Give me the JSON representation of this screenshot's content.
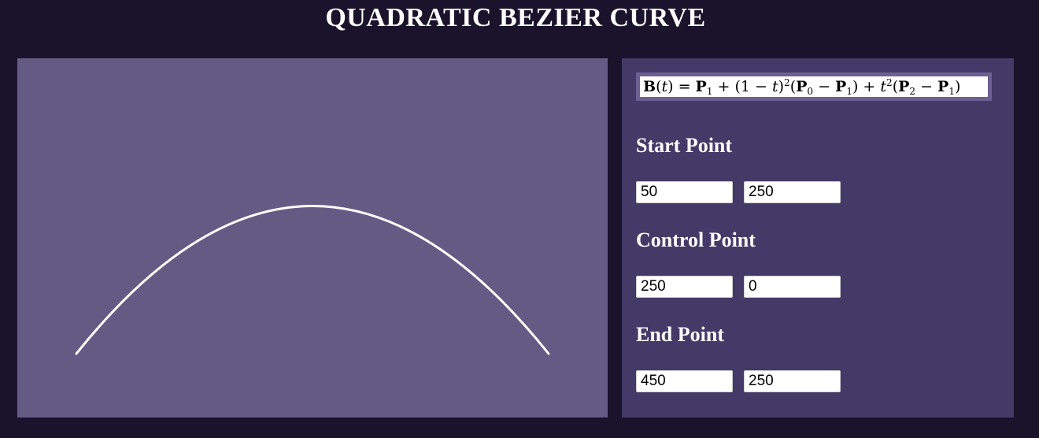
{
  "page": {
    "title": "QUADRATIC BEZIER CURVE"
  },
  "curve": {
    "stroke_color": "#ffffff",
    "background_color": "#645b85"
  },
  "formula": {
    "lhs": "B",
    "var": "t",
    "p0": "P",
    "p1": "P",
    "p2": "P",
    "sub0": "0",
    "sub1": "1",
    "sub2": "2",
    "exp": "2"
  },
  "points": {
    "start": {
      "label": "Start Point",
      "x": "50",
      "y": "250"
    },
    "control": {
      "label": "Control Point",
      "x": "250",
      "y": "0"
    },
    "end": {
      "label": "End Point",
      "x": "450",
      "y": "250"
    }
  }
}
